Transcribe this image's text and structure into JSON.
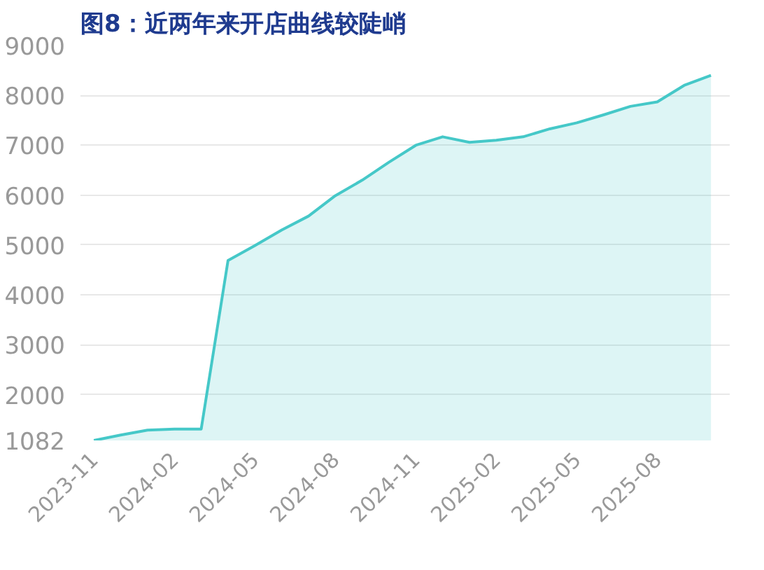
{
  "chart_data": {
    "type": "area",
    "title": "图8：近两年来开店曲线较陡峭",
    "categories": [
      "2023-11",
      null,
      null,
      "2024-02",
      null,
      null,
      "2024-05",
      null,
      null,
      "2024-08",
      null,
      null,
      "2024-11",
      null,
      null,
      "2025-02",
      null,
      null,
      "2025-05",
      null,
      null,
      "2025-08",
      null,
      null
    ],
    "series": [
      {
        "color": "#45c8c8",
        "values": [
          1082,
          1190,
          1290,
          1310,
          1310,
          4690,
          4990,
          5300,
          5580,
          5990,
          6300,
          6660,
          7000,
          7170,
          7060,
          7100,
          7170,
          7330,
          7450,
          7610,
          7780,
          7870,
          8200,
          8400
        ]
      }
    ],
    "ylim": [
      1082,
      9000
    ],
    "yticks": [
      1082,
      2000,
      3000,
      4000,
      5000,
      6000,
      7000,
      8000,
      9000
    ],
    "grid": "y"
  }
}
